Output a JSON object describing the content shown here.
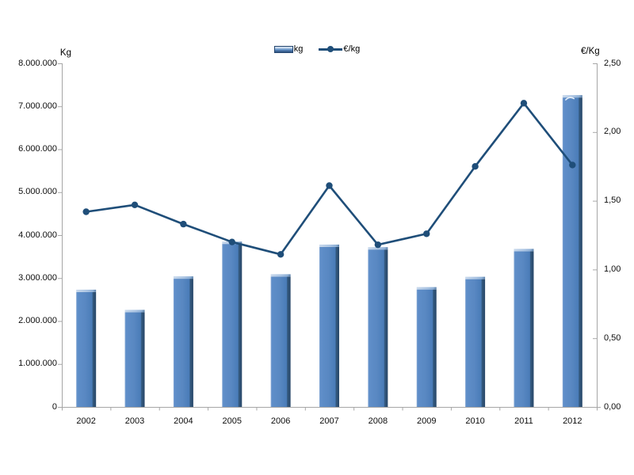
{
  "chart_data": {
    "type": "bar",
    "subtype": "combo-bar-line-dual-axis",
    "title": "",
    "categories": [
      "2002",
      "2003",
      "2004",
      "2005",
      "2006",
      "2007",
      "2008",
      "2009",
      "2010",
      "2011",
      "2012"
    ],
    "series": [
      {
        "name": "kg",
        "type": "bar",
        "axis": "left",
        "values": [
          2730000,
          2260000,
          3040000,
          3850000,
          3090000,
          3780000,
          3720000,
          2790000,
          3030000,
          3680000,
          7260000
        ]
      },
      {
        "name": "€/kg",
        "type": "line",
        "axis": "right",
        "values": [
          1.42,
          1.47,
          1.33,
          1.2,
          1.11,
          1.61,
          1.18,
          1.26,
          1.75,
          2.21,
          1.76
        ]
      }
    ],
    "left_axis": {
      "label": "Kg",
      "min": 0,
      "max": 8000000,
      "step": 1000000,
      "tick_labels": [
        "0",
        "1.000.000",
        "2.000.000",
        "3.000.000",
        "4.000.000",
        "5.000.000",
        "6.000.000",
        "7.000.000",
        "8.000.000"
      ]
    },
    "right_axis": {
      "label": "€/Kg",
      "min": 0,
      "max": 2.5,
      "step": 0.5,
      "tick_labels": [
        "0,00",
        "0,50",
        "1,00",
        "1,50",
        "2,00",
        "2,50"
      ]
    },
    "legend": {
      "position": "top-center",
      "items": [
        "kg",
        "€/kg"
      ]
    },
    "grid": false,
    "colors": {
      "bar_fill": "#4F81BD",
      "bar_edge_dark": "#294869",
      "bar_cap": "#A9C3E2",
      "line": "#1F4E79",
      "axis": "#A6A6A6",
      "text": "#000000",
      "background": "#FFFFFF"
    }
  }
}
